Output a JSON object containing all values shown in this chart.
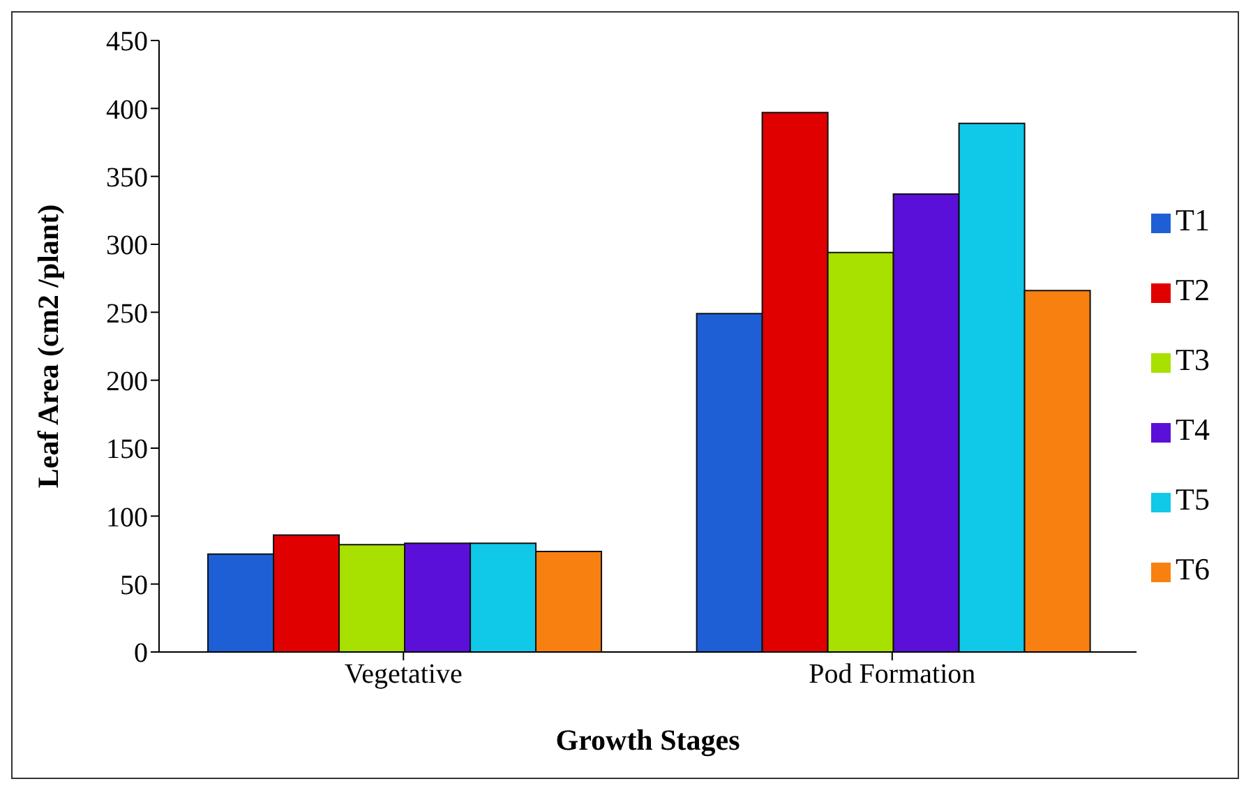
{
  "chart_data": {
    "type": "bar",
    "xlabel": "Growth Stages",
    "ylabel": "Leaf Area (cm2 /plant)",
    "categories": [
      "Vegetative",
      "Pod Formation"
    ],
    "series": [
      {
        "name": "T1",
        "color": "#1f5fd6",
        "values": [
          72,
          249
        ]
      },
      {
        "name": "T2",
        "color": "#e00000",
        "values": [
          86,
          397
        ]
      },
      {
        "name": "T3",
        "color": "#a8e000",
        "values": [
          79,
          294
        ]
      },
      {
        "name": "T4",
        "color": "#5a10d8",
        "values": [
          80,
          337
        ]
      },
      {
        "name": "T5",
        "color": "#10c8e8",
        "values": [
          80,
          389
        ]
      },
      {
        "name": "T6",
        "color": "#f88010",
        "values": [
          74,
          266
        ]
      }
    ],
    "ylim": [
      0,
      450
    ],
    "yticks": [
      0,
      50,
      100,
      150,
      200,
      250,
      300,
      350,
      400,
      450
    ],
    "grid": false,
    "legend": "right"
  }
}
